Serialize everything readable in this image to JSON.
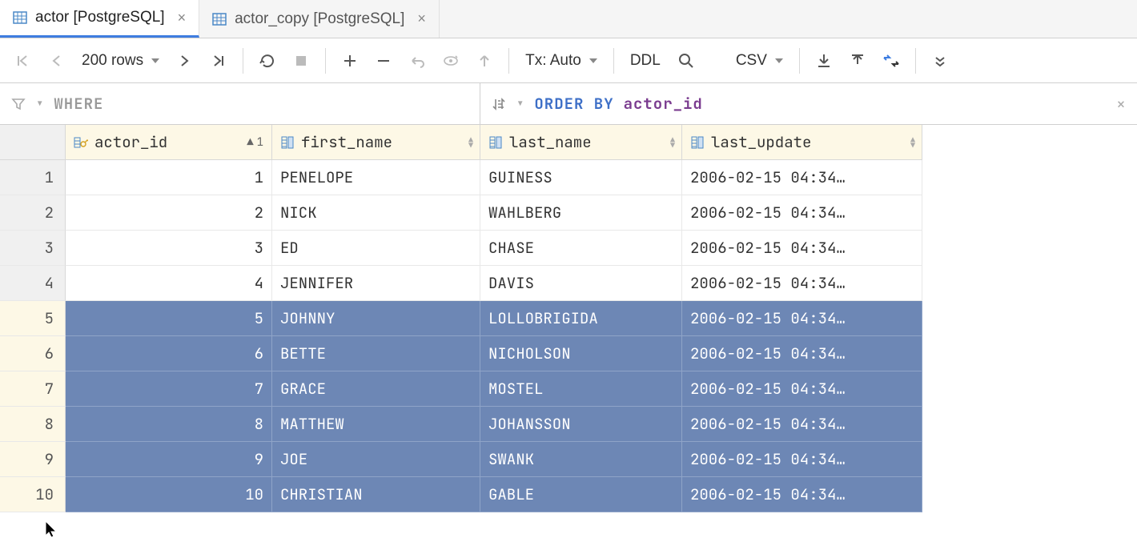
{
  "tabs": [
    {
      "label": "actor [PostgreSQL]",
      "active": true
    },
    {
      "label": "actor_copy [PostgreSQL]",
      "active": false
    }
  ],
  "toolbar": {
    "rows_label": "200 rows",
    "tx_label": "Tx: Auto",
    "ddl_label": "DDL",
    "csv_label": "CSV"
  },
  "filter": {
    "where": "WHERE",
    "orderby_kw": "ORDER BY",
    "orderby_col": "actor_id"
  },
  "columns": [
    {
      "name": "actor_id",
      "sort_dir": "asc",
      "sort_order": "1",
      "pk": true
    },
    {
      "name": "first_name",
      "sort_dir": null,
      "pk": false
    },
    {
      "name": "last_name",
      "sort_dir": null,
      "pk": false
    },
    {
      "name": "last_update",
      "sort_dir": null,
      "pk": false
    }
  ],
  "rows": [
    {
      "n": "1",
      "actor_id": "1",
      "first_name": "PENELOPE",
      "last_name": "GUINESS",
      "last_update": "2006-02-15 04:34…",
      "selected": false
    },
    {
      "n": "2",
      "actor_id": "2",
      "first_name": "NICK",
      "last_name": "WAHLBERG",
      "last_update": "2006-02-15 04:34…",
      "selected": false
    },
    {
      "n": "3",
      "actor_id": "3",
      "first_name": "ED",
      "last_name": "CHASE",
      "last_update": "2006-02-15 04:34…",
      "selected": false
    },
    {
      "n": "4",
      "actor_id": "4",
      "first_name": "JENNIFER",
      "last_name": "DAVIS",
      "last_update": "2006-02-15 04:34…",
      "selected": false
    },
    {
      "n": "5",
      "actor_id": "5",
      "first_name": "JOHNNY",
      "last_name": "LOLLOBRIGIDA",
      "last_update": "2006-02-15 04:34…",
      "selected": true
    },
    {
      "n": "6",
      "actor_id": "6",
      "first_name": "BETTE",
      "last_name": "NICHOLSON",
      "last_update": "2006-02-15 04:34…",
      "selected": true
    },
    {
      "n": "7",
      "actor_id": "7",
      "first_name": "GRACE",
      "last_name": "MOSTEL",
      "last_update": "2006-02-15 04:34…",
      "selected": true
    },
    {
      "n": "8",
      "actor_id": "8",
      "first_name": "MATTHEW",
      "last_name": "JOHANSSON",
      "last_update": "2006-02-15 04:34…",
      "selected": true
    },
    {
      "n": "9",
      "actor_id": "9",
      "first_name": "JOE",
      "last_name": "SWANK",
      "last_update": "2006-02-15 04:34…",
      "selected": true
    },
    {
      "n": "10",
      "actor_id": "10",
      "first_name": "CHRISTIAN",
      "last_name": "GABLE",
      "last_update": "2006-02-15 04:34…",
      "selected": true
    }
  ],
  "colors": {
    "selection_bg": "#6d87b5",
    "header_bg": "#fdf8e6",
    "accent": "#3e7de0"
  }
}
